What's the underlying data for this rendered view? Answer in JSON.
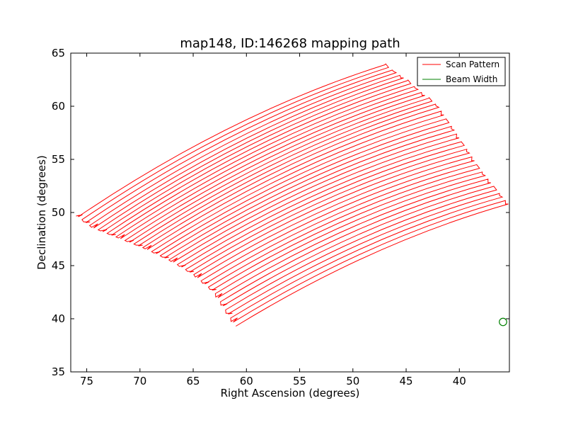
{
  "chart_data": {
    "type": "line",
    "title": "map148, ID:146268 mapping path",
    "xlabel": "Right Ascension (degrees)",
    "ylabel": "Declination (degrees)",
    "xlim": [
      76.5,
      35.3
    ],
    "ylim": [
      35,
      65
    ],
    "xticks": [
      75,
      70,
      65,
      60,
      55,
      50,
      45,
      40
    ],
    "yticks": [
      35,
      40,
      45,
      50,
      55,
      60,
      65
    ],
    "xtick_labels": [
      "75",
      "70",
      "65",
      "60",
      "55",
      "50",
      "45",
      "40"
    ],
    "ytick_labels": [
      "35",
      "40",
      "45",
      "50",
      "55",
      "60",
      "65"
    ],
    "grid": false,
    "legend_position": "upper-right",
    "series": [
      {
        "name": "Scan Pattern",
        "color": "#ff0000",
        "kind": "raster_scan",
        "leg_count": 42,
        "start_curve": [
          [
            75.8,
            49.6
          ],
          [
            74.5,
            48.6
          ],
          [
            72.0,
            47.6
          ],
          [
            69.5,
            46.6
          ],
          [
            67.0,
            45.4
          ],
          [
            65.0,
            44.2
          ],
          [
            63.0,
            42.5
          ],
          [
            61.0,
            39.3
          ]
        ],
        "end_curve": [
          [
            47.0,
            63.9
          ],
          [
            45.0,
            62.5
          ],
          [
            42.0,
            60.0
          ],
          [
            40.0,
            57.0
          ],
          [
            38.0,
            54.0
          ],
          [
            36.0,
            51.5
          ],
          [
            35.4,
            50.8
          ]
        ],
        "leg_sag": [
          0.3,
          0.8
        ]
      },
      {
        "name": "Beam Width",
        "color": "#008000",
        "kind": "circle",
        "center": [
          35.9,
          39.7
        ],
        "diameter": 0.7
      }
    ]
  }
}
